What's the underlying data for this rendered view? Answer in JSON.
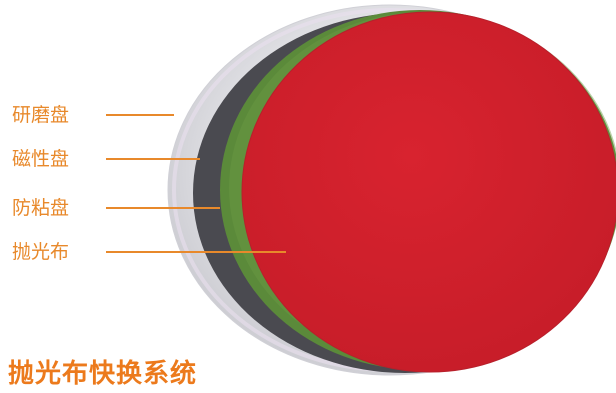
{
  "title": "抛光布快换系统",
  "layers": [
    {
      "name": "grinding-disc",
      "label": "研磨盘",
      "color": "#dcdcdc"
    },
    {
      "name": "magnetic-disc",
      "label": "磁性盘",
      "color": "#4a4a50"
    },
    {
      "name": "anti-stick-disc",
      "label": "防粘盘",
      "color": "#5b8a3a"
    },
    {
      "name": "polishing-cloth",
      "label": "抛光布",
      "color": "#cf1f2c"
    }
  ],
  "colors": {
    "label": "#e8892b",
    "title": "#ec7a1c"
  }
}
